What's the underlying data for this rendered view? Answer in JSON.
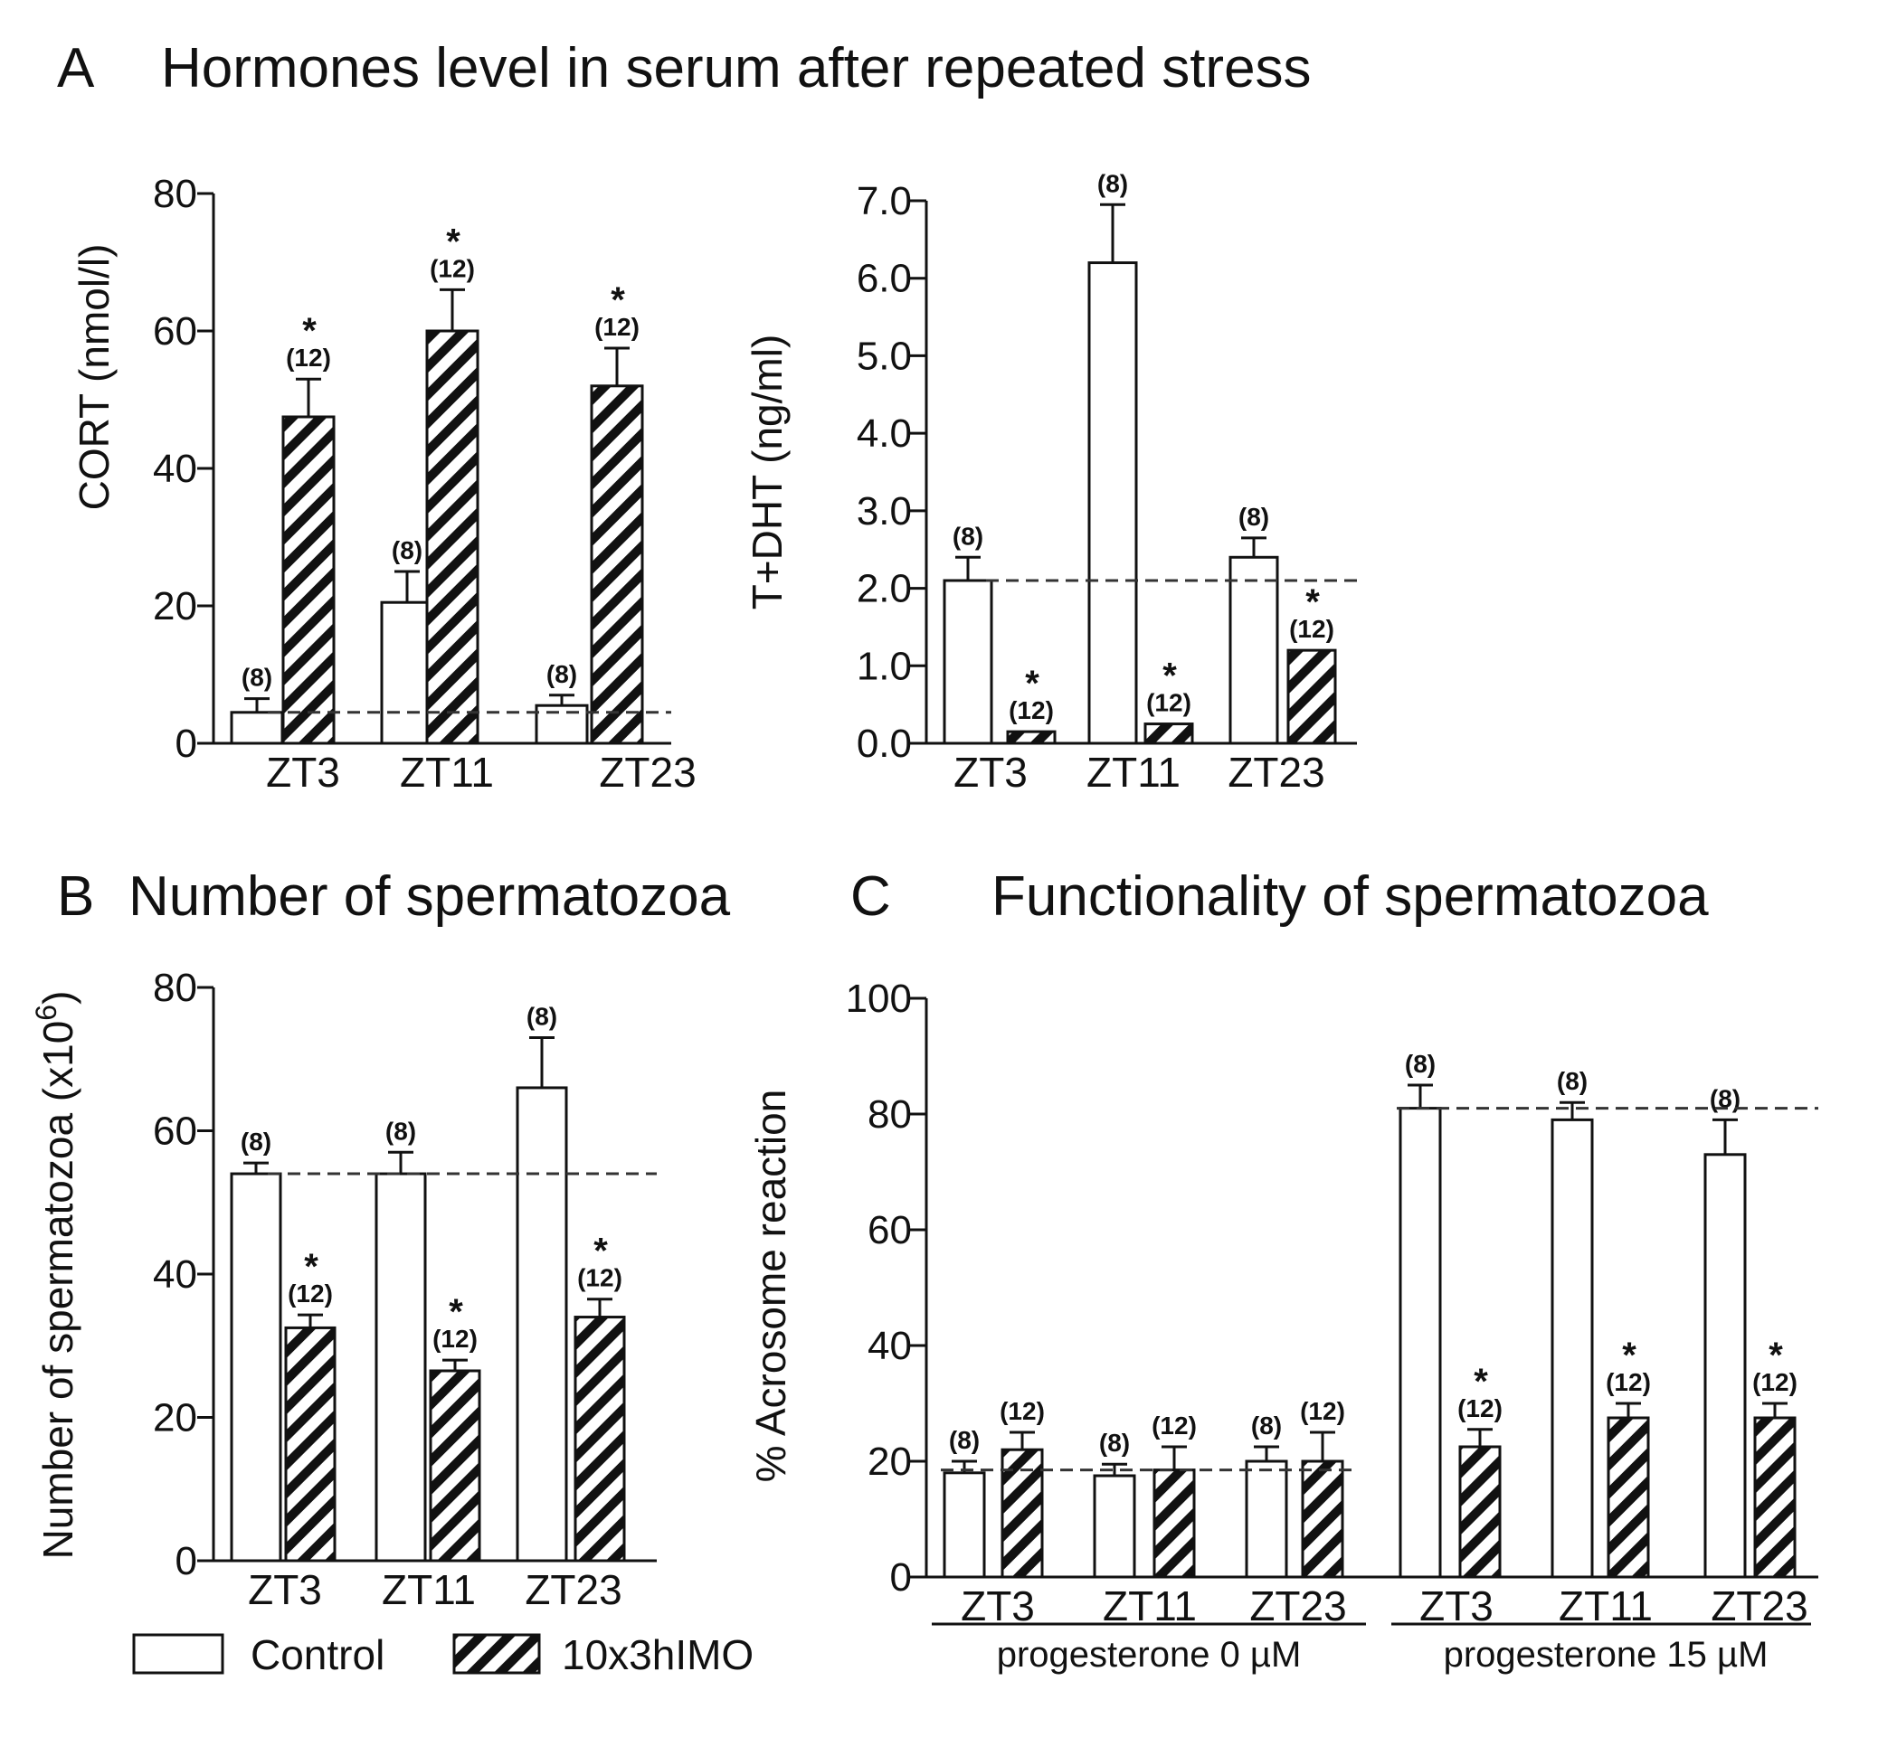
{
  "figure": {
    "panel_A": {
      "letter": "A",
      "title": "Hormones level in serum after repeated stress"
    },
    "panel_B": {
      "letter": "B",
      "title": "Number of spermatozoa"
    },
    "panel_C": {
      "letter": "C",
      "title": "Functionality of spermatozoa"
    },
    "legend": {
      "control": "Control",
      "stress": "10x3hIMO"
    },
    "group_labels": [
      "progesterone 0 µM",
      "progesterone 15 µM"
    ]
  },
  "chart_data": [
    {
      "id": "cort",
      "type": "bar",
      "title": "",
      "ylabel": "CORT (nmol/l)",
      "ylim": [
        0,
        80
      ],
      "yticks": [
        0,
        20,
        40,
        60,
        80
      ],
      "ytick_labels": [
        "0",
        "20",
        "40",
        "60",
        "80"
      ],
      "categories": [
        "ZT3",
        "ZT11",
        "ZT23"
      ],
      "reference_line": 4.5,
      "series": [
        {
          "name": "Control",
          "values": [
            4.5,
            20.5,
            5.5
          ],
          "errors": [
            2.0,
            4.5,
            1.5
          ],
          "n": [
            "(8)",
            "(8)",
            "(8)"
          ],
          "sig": [
            "",
            "",
            ""
          ]
        },
        {
          "name": "10x3hIMO",
          "values": [
            47.5,
            60.0,
            52.0
          ],
          "errors": [
            5.5,
            6.0,
            5.5
          ],
          "n": [
            "(12)",
            "(12)",
            "(12)"
          ],
          "sig": [
            "*",
            "*",
            "*"
          ]
        }
      ]
    },
    {
      "id": "tdht",
      "type": "bar",
      "title": "",
      "ylabel": "T+DHT (ng/ml)",
      "ylim": [
        0,
        7
      ],
      "yticks": [
        0,
        1,
        2,
        3,
        4,
        5,
        6,
        7
      ],
      "ytick_labels": [
        "0.0",
        "1.0",
        "2.0",
        "3.0",
        "4.0",
        "5.0",
        "6.0",
        "7.0"
      ],
      "categories": [
        "ZT3",
        "ZT11",
        "ZT23"
      ],
      "reference_line": 2.1,
      "series": [
        {
          "name": "Control",
          "values": [
            2.1,
            6.2,
            2.4
          ],
          "errors": [
            0.3,
            0.75,
            0.25
          ],
          "n": [
            "(8)",
            "(8)",
            "(8)"
          ],
          "sig": [
            "",
            "",
            ""
          ]
        },
        {
          "name": "10x3hIMO",
          "values": [
            0.15,
            0.25,
            1.2
          ],
          "errors": [
            0.0,
            0.0,
            0.0
          ],
          "n": [
            "(12)",
            "(12)",
            "(12)"
          ],
          "sig": [
            "*",
            "*",
            "*"
          ]
        }
      ]
    },
    {
      "id": "sperm",
      "type": "bar",
      "title": "",
      "ylabel": "Number of spermatozoa (x10",
      "ylabel_sup": "6",
      "ylabel_end": ")",
      "ylim": [
        0,
        80
      ],
      "yticks": [
        0,
        20,
        40,
        60,
        80
      ],
      "ytick_labels": [
        "0",
        "20",
        "40",
        "60",
        "80"
      ],
      "categories": [
        "ZT3",
        "ZT11",
        "ZT23"
      ],
      "reference_line": 54,
      "series": [
        {
          "name": "Control",
          "values": [
            54,
            54,
            66
          ],
          "errors": [
            1.5,
            3.0,
            7.0
          ],
          "n": [
            "(8)",
            "(8)",
            "(8)"
          ],
          "sig": [
            "",
            "",
            ""
          ]
        },
        {
          "name": "10x3hIMO",
          "values": [
            32.5,
            26.5,
            34.0
          ],
          "errors": [
            1.8,
            1.5,
            2.5
          ],
          "n": [
            "(12)",
            "(12)",
            "(12)"
          ],
          "sig": [
            "*",
            "*",
            "*"
          ]
        }
      ]
    },
    {
      "id": "acrosome",
      "type": "bar",
      "title": "",
      "ylabel": "% Acrosome reaction",
      "ylim": [
        0,
        100
      ],
      "yticks": [
        0,
        20,
        40,
        60,
        80,
        100
      ],
      "ytick_labels": [
        "0",
        "20",
        "40",
        "60",
        "80",
        "100"
      ],
      "categories": [
        "ZT3",
        "ZT11",
        "ZT23",
        "ZT3",
        "ZT11",
        "ZT23"
      ],
      "groups": [
        {
          "label": "progesterone 0 µM",
          "categories": [
            0,
            1,
            2
          ],
          "reference_line": 18.5
        },
        {
          "label": "progesterone 15 µM",
          "categories": [
            3,
            4,
            5
          ],
          "reference_line": 81
        }
      ],
      "series": [
        {
          "name": "Control",
          "values": [
            18.0,
            17.5,
            20.0,
            81.0,
            79.0,
            73.0
          ],
          "errors": [
            2.0,
            2.0,
            2.5,
            4.0,
            3.0,
            6.0
          ],
          "n": [
            "(8)",
            "(8)",
            "(8)",
            "(8)",
            "(8)",
            "(8)"
          ],
          "sig": [
            "",
            "",
            "",
            "",
            "",
            ""
          ]
        },
        {
          "name": "10x3hIMO",
          "values": [
            22.0,
            18.5,
            20.0,
            22.5,
            27.5,
            27.5
          ],
          "errors": [
            3.0,
            4.0,
            5.0,
            3.0,
            2.5,
            2.5
          ],
          "n": [
            "(12)",
            "(12)",
            "(12)",
            "(12)",
            "(12)",
            "(12)"
          ],
          "sig": [
            "",
            "",
            "",
            "*",
            "*",
            "*"
          ]
        }
      ]
    }
  ]
}
